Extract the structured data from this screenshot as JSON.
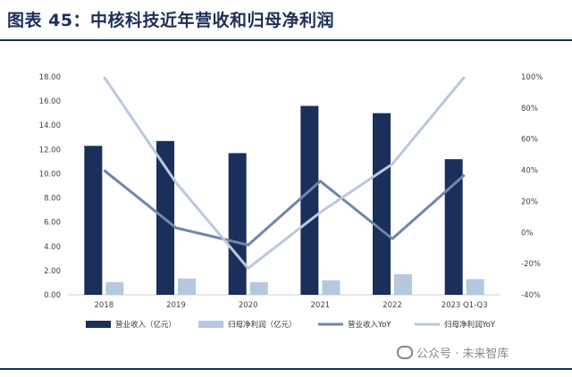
{
  "title": "图表 45：中核科技近年营收和归母净利润",
  "watermark": "公众号 · 未来智库",
  "colors": {
    "revenue_bar": "#1b2f5b",
    "profit_bar": "#b5c8e0",
    "revenue_yoy_line": "#6f86ad",
    "profit_yoy_line": "#b9c9de",
    "title": "#1b2f5b"
  },
  "chart_data": {
    "type": "bar",
    "categories": [
      "2018",
      "2019",
      "2020",
      "2021",
      "2022",
      "2023 Q1-Q3"
    ],
    "series": [
      {
        "name": "营业收入（亿元）",
        "kind": "bar",
        "axis": "left",
        "values": [
          12.3,
          12.7,
          11.7,
          15.6,
          15.0,
          11.2
        ]
      },
      {
        "name": "归母净利润（亿元）",
        "kind": "bar",
        "axis": "left",
        "values": [
          1.05,
          1.35,
          1.05,
          1.2,
          1.7,
          1.3
        ]
      },
      {
        "name": "营业收入YoY",
        "kind": "line",
        "axis": "right",
        "values": [
          40,
          3,
          -8,
          33,
          -4,
          37
        ]
      },
      {
        "name": "归母净利润YoY",
        "kind": "line",
        "axis": "right",
        "values": [
          100,
          32,
          -23,
          13,
          44,
          100
        ]
      }
    ],
    "y_left": {
      "min": 0,
      "max": 18,
      "step": 2,
      "tick_labels": [
        "0.00",
        "2.00",
        "4.00",
        "6.00",
        "8.00",
        "10.00",
        "12.00",
        "14.00",
        "16.00",
        "18.00"
      ]
    },
    "y_right": {
      "min": -40,
      "max": 100,
      "step": 20,
      "tick_labels": [
        "-40%",
        "-20%",
        "0%",
        "20%",
        "40%",
        "60%",
        "80%",
        "100%"
      ]
    },
    "grid": false,
    "legend_position": "bottom"
  }
}
